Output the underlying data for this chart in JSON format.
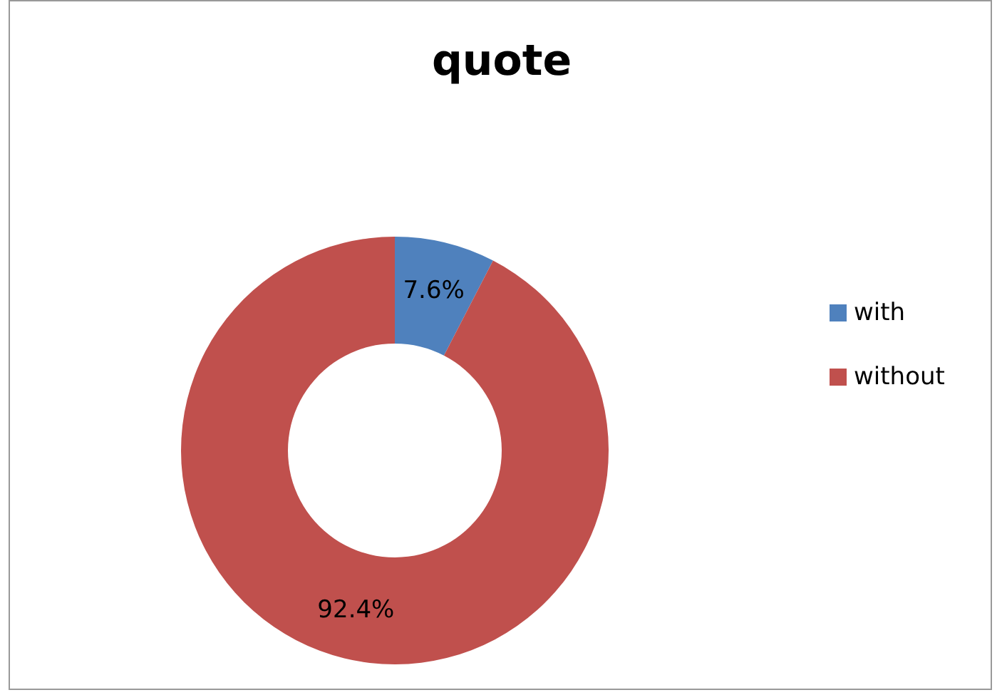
{
  "chart_data": {
    "type": "donut",
    "title": "quote",
    "categories": [
      "with",
      "without"
    ],
    "values": [
      7.6,
      92.4
    ],
    "value_labels": [
      "7.6%",
      "92.4%"
    ],
    "colors": [
      "#4f81bd",
      "#c0504d"
    ],
    "data_labels": true,
    "legend": "right"
  }
}
